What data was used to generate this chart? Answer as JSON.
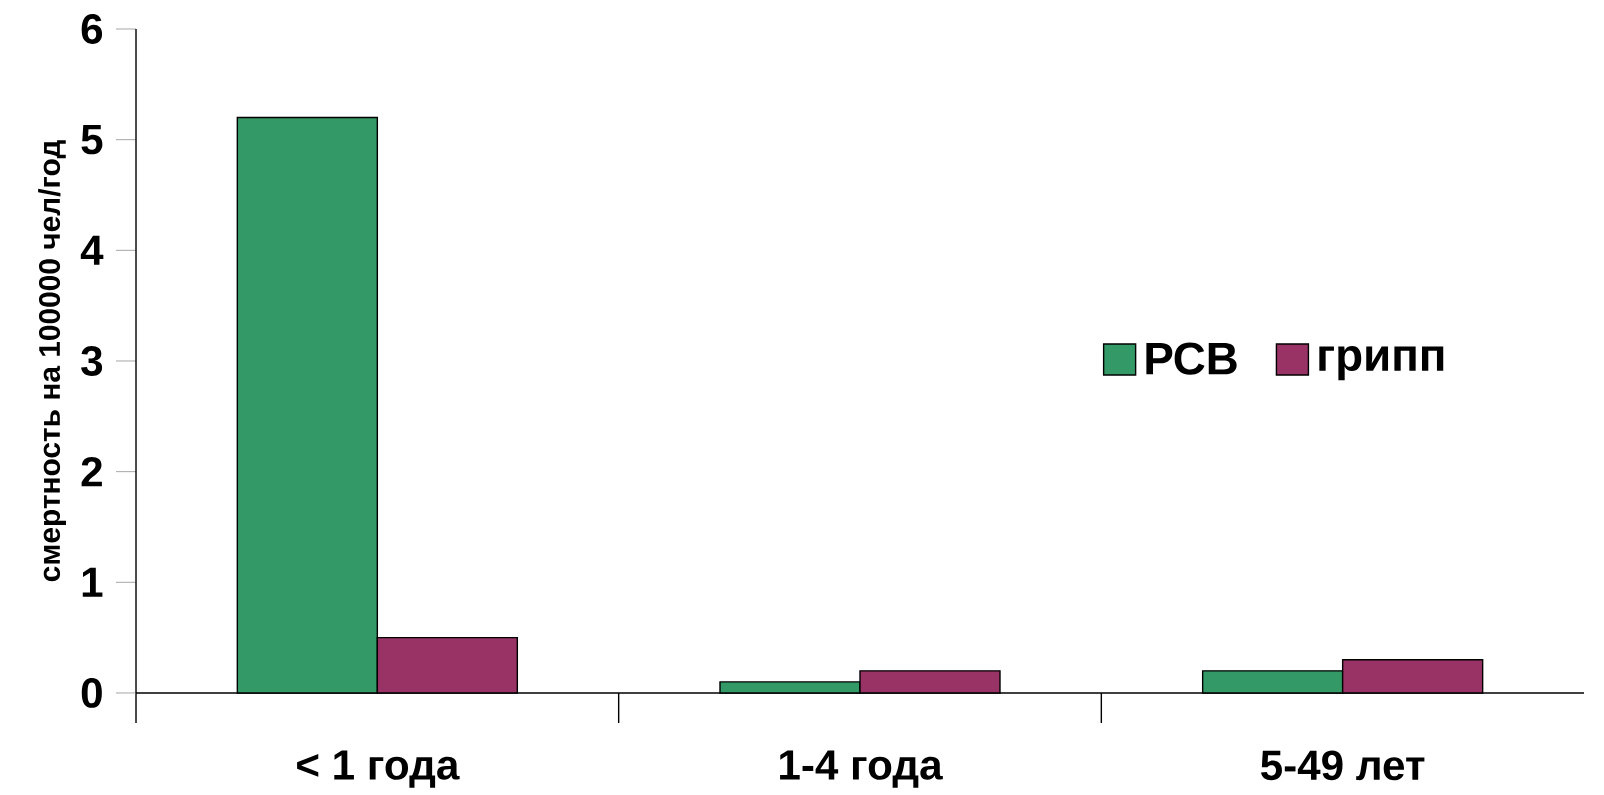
{
  "chart_data": {
    "type": "bar",
    "ylabel": "смертность на 100000 чел/год",
    "categories": [
      "< 1 года",
      "1-4 года",
      "5-49 лет"
    ],
    "series": [
      {
        "name": "РСВ",
        "color": "#339966",
        "values": [
          5.2,
          0.1,
          0.2
        ]
      },
      {
        "name": "грипп",
        "color": "#993366",
        "values": [
          0.5,
          0.2,
          0.3
        ]
      }
    ],
    "ylim": [
      0,
      6
    ],
    "yticks": [
      0,
      1,
      2,
      3,
      4,
      5,
      6
    ],
    "grid": false,
    "legend": "right"
  }
}
